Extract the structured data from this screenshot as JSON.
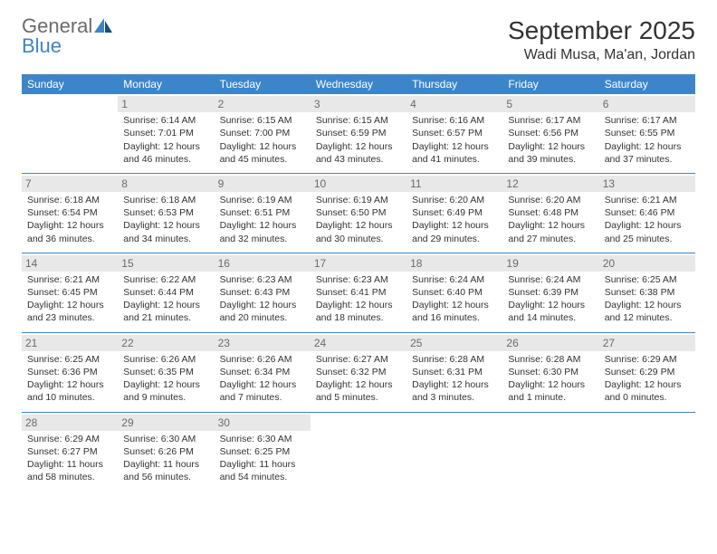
{
  "logo": {
    "general": "General",
    "blue": "Blue"
  },
  "title": "September 2025",
  "location": "Wadi Musa, Ma'an, Jordan",
  "colors": {
    "header_bg": "#3d85c6",
    "header_text": "#ffffff",
    "daynum_bg": "#e8e8e8",
    "daynum_text": "#6b6b6b",
    "border": "#3d85c6",
    "text": "#333333",
    "logo_gray": "#6b6b6b",
    "logo_blue": "#3d85c6"
  },
  "weekdays": [
    "Sunday",
    "Monday",
    "Tuesday",
    "Wednesday",
    "Thursday",
    "Friday",
    "Saturday"
  ],
  "weeks": [
    [
      {
        "day": "",
        "sunrise": "",
        "sunset": "",
        "daylight": ""
      },
      {
        "day": "1",
        "sunrise": "Sunrise: 6:14 AM",
        "sunset": "Sunset: 7:01 PM",
        "daylight": "Daylight: 12 hours and 46 minutes."
      },
      {
        "day": "2",
        "sunrise": "Sunrise: 6:15 AM",
        "sunset": "Sunset: 7:00 PM",
        "daylight": "Daylight: 12 hours and 45 minutes."
      },
      {
        "day": "3",
        "sunrise": "Sunrise: 6:15 AM",
        "sunset": "Sunset: 6:59 PM",
        "daylight": "Daylight: 12 hours and 43 minutes."
      },
      {
        "day": "4",
        "sunrise": "Sunrise: 6:16 AM",
        "sunset": "Sunset: 6:57 PM",
        "daylight": "Daylight: 12 hours and 41 minutes."
      },
      {
        "day": "5",
        "sunrise": "Sunrise: 6:17 AM",
        "sunset": "Sunset: 6:56 PM",
        "daylight": "Daylight: 12 hours and 39 minutes."
      },
      {
        "day": "6",
        "sunrise": "Sunrise: 6:17 AM",
        "sunset": "Sunset: 6:55 PM",
        "daylight": "Daylight: 12 hours and 37 minutes."
      }
    ],
    [
      {
        "day": "7",
        "sunrise": "Sunrise: 6:18 AM",
        "sunset": "Sunset: 6:54 PM",
        "daylight": "Daylight: 12 hours and 36 minutes."
      },
      {
        "day": "8",
        "sunrise": "Sunrise: 6:18 AM",
        "sunset": "Sunset: 6:53 PM",
        "daylight": "Daylight: 12 hours and 34 minutes."
      },
      {
        "day": "9",
        "sunrise": "Sunrise: 6:19 AM",
        "sunset": "Sunset: 6:51 PM",
        "daylight": "Daylight: 12 hours and 32 minutes."
      },
      {
        "day": "10",
        "sunrise": "Sunrise: 6:19 AM",
        "sunset": "Sunset: 6:50 PM",
        "daylight": "Daylight: 12 hours and 30 minutes."
      },
      {
        "day": "11",
        "sunrise": "Sunrise: 6:20 AM",
        "sunset": "Sunset: 6:49 PM",
        "daylight": "Daylight: 12 hours and 29 minutes."
      },
      {
        "day": "12",
        "sunrise": "Sunrise: 6:20 AM",
        "sunset": "Sunset: 6:48 PM",
        "daylight": "Daylight: 12 hours and 27 minutes."
      },
      {
        "day": "13",
        "sunrise": "Sunrise: 6:21 AM",
        "sunset": "Sunset: 6:46 PM",
        "daylight": "Daylight: 12 hours and 25 minutes."
      }
    ],
    [
      {
        "day": "14",
        "sunrise": "Sunrise: 6:21 AM",
        "sunset": "Sunset: 6:45 PM",
        "daylight": "Daylight: 12 hours and 23 minutes."
      },
      {
        "day": "15",
        "sunrise": "Sunrise: 6:22 AM",
        "sunset": "Sunset: 6:44 PM",
        "daylight": "Daylight: 12 hours and 21 minutes."
      },
      {
        "day": "16",
        "sunrise": "Sunrise: 6:23 AM",
        "sunset": "Sunset: 6:43 PM",
        "daylight": "Daylight: 12 hours and 20 minutes."
      },
      {
        "day": "17",
        "sunrise": "Sunrise: 6:23 AM",
        "sunset": "Sunset: 6:41 PM",
        "daylight": "Daylight: 12 hours and 18 minutes."
      },
      {
        "day": "18",
        "sunrise": "Sunrise: 6:24 AM",
        "sunset": "Sunset: 6:40 PM",
        "daylight": "Daylight: 12 hours and 16 minutes."
      },
      {
        "day": "19",
        "sunrise": "Sunrise: 6:24 AM",
        "sunset": "Sunset: 6:39 PM",
        "daylight": "Daylight: 12 hours and 14 minutes."
      },
      {
        "day": "20",
        "sunrise": "Sunrise: 6:25 AM",
        "sunset": "Sunset: 6:38 PM",
        "daylight": "Daylight: 12 hours and 12 minutes."
      }
    ],
    [
      {
        "day": "21",
        "sunrise": "Sunrise: 6:25 AM",
        "sunset": "Sunset: 6:36 PM",
        "daylight": "Daylight: 12 hours and 10 minutes."
      },
      {
        "day": "22",
        "sunrise": "Sunrise: 6:26 AM",
        "sunset": "Sunset: 6:35 PM",
        "daylight": "Daylight: 12 hours and 9 minutes."
      },
      {
        "day": "23",
        "sunrise": "Sunrise: 6:26 AM",
        "sunset": "Sunset: 6:34 PM",
        "daylight": "Daylight: 12 hours and 7 minutes."
      },
      {
        "day": "24",
        "sunrise": "Sunrise: 6:27 AM",
        "sunset": "Sunset: 6:32 PM",
        "daylight": "Daylight: 12 hours and 5 minutes."
      },
      {
        "day": "25",
        "sunrise": "Sunrise: 6:28 AM",
        "sunset": "Sunset: 6:31 PM",
        "daylight": "Daylight: 12 hours and 3 minutes."
      },
      {
        "day": "26",
        "sunrise": "Sunrise: 6:28 AM",
        "sunset": "Sunset: 6:30 PM",
        "daylight": "Daylight: 12 hours and 1 minute."
      },
      {
        "day": "27",
        "sunrise": "Sunrise: 6:29 AM",
        "sunset": "Sunset: 6:29 PM",
        "daylight": "Daylight: 12 hours and 0 minutes."
      }
    ],
    [
      {
        "day": "28",
        "sunrise": "Sunrise: 6:29 AM",
        "sunset": "Sunset: 6:27 PM",
        "daylight": "Daylight: 11 hours and 58 minutes."
      },
      {
        "day": "29",
        "sunrise": "Sunrise: 6:30 AM",
        "sunset": "Sunset: 6:26 PM",
        "daylight": "Daylight: 11 hours and 56 minutes."
      },
      {
        "day": "30",
        "sunrise": "Sunrise: 6:30 AM",
        "sunset": "Sunset: 6:25 PM",
        "daylight": "Daylight: 11 hours and 54 minutes."
      },
      {
        "day": "",
        "sunrise": "",
        "sunset": "",
        "daylight": ""
      },
      {
        "day": "",
        "sunrise": "",
        "sunset": "",
        "daylight": ""
      },
      {
        "day": "",
        "sunrise": "",
        "sunset": "",
        "daylight": ""
      },
      {
        "day": "",
        "sunrise": "",
        "sunset": "",
        "daylight": ""
      }
    ]
  ]
}
